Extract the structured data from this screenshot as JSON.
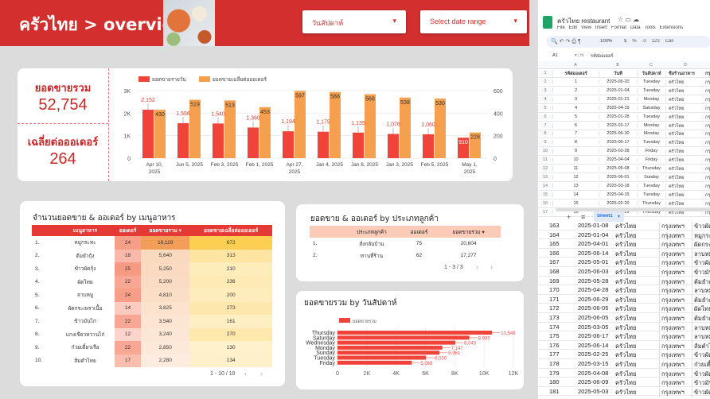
{
  "header": {
    "title": "ครัวไทย > overview",
    "weekday_filter": "วันสัปดาห์",
    "date_filter": "Select date range",
    "dropdown_icon": "caret-down-icon",
    "accent": "#d32f2f"
  },
  "kpi": {
    "total_sales_label": "ยอดขายรวม",
    "total_sales_value": "52,754",
    "avg_order_label": "เฉลี่ยต่อออเดอร์",
    "avg_order_value": "264"
  },
  "chart_data": [
    {
      "type": "bar",
      "categories": [
        "Apr 10, 2025",
        "Jun 5, 2025",
        "Feb 3, 2025",
        "Feb 1, 2025",
        "Apr 27, 2025",
        "Jan 4, 2025",
        "Jan 8, 2025",
        "Jan 3, 2025",
        "Feb 5, 2025",
        "May 1, 2025"
      ],
      "series": [
        {
          "name": "ยอดขายรายวัน",
          "values": [
            2152,
            1556,
            1540,
            1360,
            1194,
            1175,
            1135,
            1076,
            1060,
            910
          ],
          "color": "#f0433a",
          "axis": "left"
        },
        {
          "name": "ยอดขายเฉลี่ยต่อออเดอร์",
          "values": [
            430,
            519,
            513,
            453,
            597,
            588,
            568,
            538,
            530,
            228
          ],
          "color": "#f4a04f",
          "axis": "right"
        }
      ],
      "data_labels": [
        [
          "2,152",
          "1,556",
          "1,540",
          "1,360",
          "1,194",
          "1,175",
          "1,135",
          "1,076",
          "1,060",
          "910"
        ],
        [
          "430",
          "519",
          "513",
          "453",
          "597",
          "588",
          "568",
          "538",
          "530",
          "228"
        ]
      ],
      "ylim_left": [
        0,
        3000
      ],
      "yticks_left": [
        "0",
        "1K",
        "2K",
        "3K"
      ],
      "ylim_right": [
        0,
        600
      ],
      "yticks_right": [
        "0",
        "200",
        "400",
        "600"
      ],
      "legend": "top-left",
      "grid": true
    },
    {
      "type": "bar",
      "orientation": "horizontal",
      "title": "ยอดขายรวม by วันสัปดาห์",
      "categories": [
        "Thursday",
        "Saturday",
        "Wednesday",
        "Monday",
        "Sunday",
        "Tuesday",
        "Friday"
      ],
      "series": [
        {
          "name": "ยอดขายรวม",
          "values": [
            10548,
            8995,
            8045,
            7147,
            6961,
            6030,
            5068
          ],
          "color": "#f0433a"
        }
      ],
      "data_labels": [
        "10,548",
        "8,995",
        "8,045",
        "7,147",
        "6,961",
        "6,030",
        "5,068"
      ],
      "xlim": [
        0,
        12000
      ],
      "xticks": [
        "0",
        "2K",
        "4K",
        "6K",
        "8K",
        "10K",
        "12K"
      ],
      "legend": "top-left",
      "grid": true
    }
  ],
  "menu_table": {
    "title": "จำนวนยอดขาย & ออเดอร์ by เมนูอาหาร",
    "columns": [
      "เมนูอาหาร",
      "ออเดอร์",
      "ยอดขายรวม ▾",
      "ยอดขายเฉลี่ยต่อออเดอร์"
    ],
    "rows": [
      [
        "1.",
        "หมูกระทะ",
        "24",
        "16,119",
        "672"
      ],
      [
        "2.",
        "ต้มยำกุ้ง",
        "18",
        "5,640",
        "313"
      ],
      [
        "3.",
        "ข้าวผัดกุ้ง",
        "25",
        "5,250",
        "210"
      ],
      [
        "4.",
        "ผัดไทย",
        "22",
        "5,200",
        "236"
      ],
      [
        "5.",
        "ลาบหมู",
        "24",
        "4,810",
        "200"
      ],
      [
        "6.",
        "ผัดกระเพราเนื้อ",
        "14",
        "3,825",
        "273"
      ],
      [
        "7.",
        "ข้าวมันไก่",
        "22",
        "3,540",
        "161"
      ],
      [
        "8.",
        "แกงเขียวหวานไก่",
        "12",
        "3,240",
        "270"
      ],
      [
        "9.",
        "ก๋วยเตี๋ยวเรือ",
        "22",
        "2,850",
        "130"
      ],
      [
        "10.",
        "ส้มตำไทย",
        "17",
        "2,280",
        "134"
      ]
    ],
    "pagination": "1 - 10 / 10",
    "prev_icon": "chevron-left-icon",
    "next_icon": "chevron-right-icon"
  },
  "customer_table": {
    "title": "ยอดขาย & ออเดอร์ by ประเภทลูกค้า",
    "columns": [
      "ประเภทลูกค้า",
      "ออเดอร์",
      "ยอดขายรวม ▾"
    ],
    "rows": [
      [
        "1.",
        "สั่งกลับบ้าน",
        "75",
        "20,604"
      ],
      [
        "2.",
        "ทานที่ร้าน",
        "62",
        "17,277"
      ]
    ],
    "pagination": "1 - 3 / 3"
  },
  "spreadsheet": {
    "title": "ครัวไทย restaurant",
    "menu": [
      "File",
      "Edit",
      "View",
      "Insert",
      "Format",
      "Data",
      "Tools",
      "Extensions"
    ],
    "zoom": "100%",
    "toolbar_extra": [
      "$",
      "%",
      ".0",
      "123",
      "Cali"
    ],
    "cell_ref": "A1",
    "formula": "รหัสออเดอร์",
    "col_letters": [
      "A",
      "B",
      "C",
      "D"
    ],
    "headers": [
      "รหัสออเดอร์",
      "วันที่",
      "วันสัปดาห์",
      "ชื่อร้านอาหาร"
    ],
    "rows": [
      [
        "1",
        "2025-05-20",
        "Tuesday",
        "ครัวไทย"
      ],
      [
        "2",
        "2025-01-04",
        "Tuesday",
        "ครัวไทย"
      ],
      [
        "3",
        "2025-01-21",
        "Monday",
        "ครัวไทย"
      ],
      [
        "4",
        "2025-04-19",
        "Saturday",
        "ครัวไทย"
      ],
      [
        "5",
        "2025-01-28",
        "Tuesday",
        "ครัวไทย"
      ],
      [
        "6",
        "2025-02-17",
        "Monday",
        "ครัวไทย"
      ],
      [
        "7",
        "2025-06-30",
        "Monday",
        "ครัวไทย"
      ],
      [
        "8",
        "2025-06-17",
        "Tuesday",
        "ครัวไทย"
      ],
      [
        "9",
        "2025-03-28",
        "Friday",
        "ครัวไทย"
      ],
      [
        "10",
        "2025-04-04",
        "Friday",
        "ครัวไทย"
      ],
      [
        "11",
        "2025-05-08",
        "Thursday",
        "ครัวไทย"
      ],
      [
        "12",
        "2025-06-01",
        "Sunday",
        "ครัวไทย"
      ],
      [
        "13",
        "2025-03-18",
        "Tuesday",
        "ครัวไทย"
      ],
      [
        "14",
        "2025-04-15",
        "Tuesday",
        "ครัวไทย"
      ],
      [
        "15",
        "2025-02-20",
        "Thursday",
        "ครัวไทย"
      ],
      [
        "16",
        "2025-05-29",
        "Thursday",
        "ครัวไทย"
      ]
    ],
    "partial_col": "กรุง",
    "sheet_tab": "Sheet1",
    "bottom_rows": [
      [
        "163",
        "2025-01-08",
        "ครัวไทย",
        "กรุงเทพฯ",
        "ข้าวผัด"
      ],
      [
        "164",
        "2025-01-04",
        "ครัวไทย",
        "กรุงเทพฯ",
        "หมูกระ"
      ],
      [
        "165",
        "2025-04-01",
        "ครัวไทย",
        "กรุงเทพฯ",
        "ผัดกระเ"
      ],
      [
        "166",
        "2025-06-14",
        "ครัวไทย",
        "กรุงเทพฯ",
        "ลาบหมู"
      ],
      [
        "167",
        "2025-05-01",
        "ครัวไทย",
        "กรุงเทพฯ",
        "ข้าวผัด"
      ],
      [
        "168",
        "2025-06-03",
        "ครัวไทย",
        "กรุงเทพฯ",
        "ข้าวมันไ"
      ],
      [
        "169",
        "2025-05-28",
        "ครัวไทย",
        "กรุงเทพฯ",
        "ต้มยำกุ้"
      ],
      [
        "170",
        "2025-04-28",
        "ครัวไทย",
        "กรุงเทพฯ",
        "ลาบหมู"
      ],
      [
        "171",
        "2025-06-29",
        "ครัวไทย",
        "กรุงเทพฯ",
        "ต้มยำกุ้"
      ],
      [
        "172",
        "2025-06-05",
        "ครัวไทย",
        "กรุงเทพฯ",
        "ผัดไทย"
      ],
      [
        "173",
        "2025-06-05",
        "ครัวไทย",
        "กรุงเทพฯ",
        "ต้มยำกุ้"
      ],
      [
        "174",
        "2025-03-05",
        "ครัวไทย",
        "กรุงเทพฯ",
        "ลาบหมู"
      ],
      [
        "175",
        "2025-06-17",
        "ครัวไทย",
        "กรุงเทพฯ",
        "ลาบหมู"
      ],
      [
        "176",
        "2025-06-14",
        "ครัวไทย",
        "กรุงเทพฯ",
        "ส้มตำไ"
      ],
      [
        "177",
        "2025-02-25",
        "ครัวไทย",
        "กรุงเทพฯ",
        "ข้าวผัด"
      ],
      [
        "178",
        "2025-03-15",
        "ครัวไทย",
        "กรุงเทพฯ",
        "ก๋วยเตี๋ย"
      ],
      [
        "179",
        "2025-04-08",
        "ครัวไทย",
        "กรุงเทพฯ",
        "ข้าวผัด"
      ],
      [
        "180",
        "2025-06-09",
        "ครัวไทย",
        "กรุงเทพฯ",
        "ข้าวมันไ"
      ],
      [
        "181",
        "2025-05-03",
        "ครัวไทย",
        "กรุงเทพฯ",
        "ข้าวผัด"
      ]
    ]
  }
}
